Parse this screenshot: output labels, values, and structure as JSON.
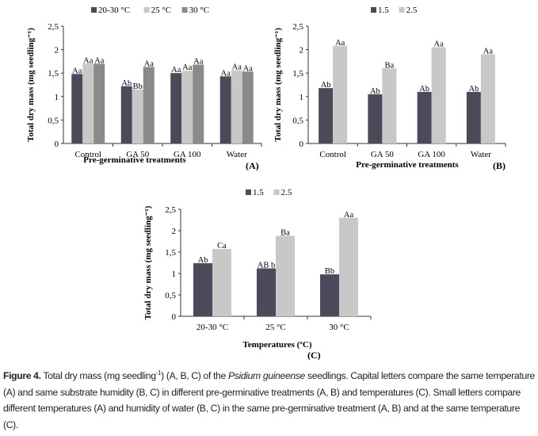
{
  "colors": {
    "series_dark": "#4a4a5a",
    "series_light": "#c8c8c8",
    "series_mid": "#8a8a8a",
    "axis": "#333333"
  },
  "chart_data": [
    {
      "panel": "(A)",
      "type": "bar",
      "title": "",
      "xlabel": "Pre-germinative treatments",
      "ylabel": "Total dry mass (mg seedling⁻¹)",
      "ylim": [
        0,
        2.5
      ],
      "yticks": [
        "0",
        "0,5",
        "1",
        "1,5",
        "2",
        "2,5"
      ],
      "legend_position": "top",
      "categories": [
        "Control",
        "GA 50",
        "GA 100",
        "Water"
      ],
      "series": [
        {
          "name": "20-30 °C",
          "values": [
            1.48,
            1.22,
            1.5,
            1.43
          ],
          "labels": [
            "Aa",
            "Ab",
            "Aa",
            "Aa"
          ]
        },
        {
          "name": "25 °C",
          "values": [
            1.7,
            1.15,
            1.55,
            1.56
          ],
          "labels": [
            "Aa",
            "Bb",
            "Aa",
            "Aa"
          ]
        },
        {
          "name": "30 °C",
          "values": [
            1.7,
            1.63,
            1.68,
            1.53
          ],
          "labels": [
            "Aa",
            "Aa",
            "Aa",
            "Aa"
          ]
        }
      ]
    },
    {
      "panel": "(B)",
      "type": "bar",
      "title": "",
      "xlabel": "Pre-germinative treatments",
      "ylabel": "Total dry mass (mg seedling⁻¹)",
      "ylim": [
        0,
        2.5
      ],
      "yticks": [
        "0",
        "0,5",
        "1",
        "1,5",
        "2",
        "2,5"
      ],
      "legend_position": "top",
      "categories": [
        "Control",
        "GA 50",
        "GA 100",
        "Water"
      ],
      "series": [
        {
          "name": "1.5",
          "values": [
            1.18,
            1.05,
            1.1,
            1.1
          ],
          "labels": [
            "Ab",
            "Ab",
            "Ab",
            "Ab"
          ]
        },
        {
          "name": "2.5",
          "values": [
            2.08,
            1.6,
            2.05,
            1.9
          ],
          "labels": [
            "Aa",
            "Ba",
            "Aa",
            "Aa"
          ]
        }
      ]
    },
    {
      "panel": "(C)",
      "type": "bar",
      "title": "",
      "xlabel": "Temperatures (ºC)",
      "ylabel": "Total dry mass (mg seedling⁻¹)",
      "ylim": [
        0,
        2.5
      ],
      "yticks": [
        "0",
        "0,5",
        "1",
        "1,5",
        "2",
        "2,5"
      ],
      "legend_position": "top",
      "categories": [
        "20-30 °C",
        "25 °C",
        "30 °C"
      ],
      "series": [
        {
          "name": "1.5",
          "values": [
            1.24,
            1.12,
            0.98
          ],
          "labels": [
            "Ab",
            "AB b",
            "Bb"
          ]
        },
        {
          "name": "2.5",
          "values": [
            1.57,
            1.88,
            2.3
          ],
          "labels": [
            "Ca",
            "Ba",
            "Aa"
          ]
        }
      ]
    }
  ],
  "caption": {
    "figure_label": "Figure 4.",
    "text_1": " Total dry mass (mg seedling",
    "sup": "-1",
    "text_2": ") (A, B, C) of the ",
    "species": "Psidium guineense",
    "text_3": " seedlings. Capital letters compare the same temperature (A) and same substrate humidity (B, C) in different pre-germinative treatments (A, B) and temperatures (C). Small letters compare different temperatures (A) and humidity of water (B, C) in the same pre-germinative treatment (A, B) and at the same temperature (C)."
  }
}
